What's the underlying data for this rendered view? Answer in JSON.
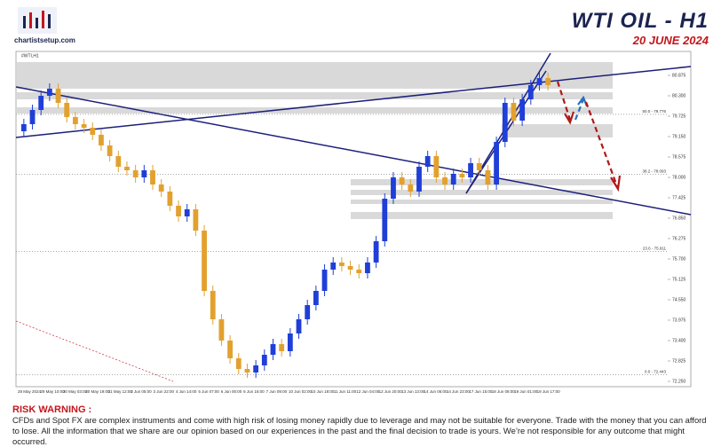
{
  "header": {
    "logo": "chartistsetup.com",
    "title": "WTI OIL  -  H1",
    "date": "20 JUNE 2024"
  },
  "chart_data": {
    "type": "candlestick",
    "symbol": "#WTI,H1",
    "up_color": "#1f3fd8",
    "down_color": "#e2a12e",
    "open": [
      79.3,
      79.5,
      79.9,
      80.3,
      80.5,
      80.1,
      79.7,
      79.5,
      79.4,
      79.2,
      78.9,
      78.6,
      78.3,
      78.2,
      78.0,
      78.2,
      77.8,
      77.6,
      77.2,
      76.9,
      77.1,
      76.5,
      74.8,
      74.0,
      73.4,
      72.9,
      72.6,
      72.5,
      72.7,
      73.0,
      73.3,
      73.1,
      73.6,
      74.0,
      74.4,
      74.8,
      75.4,
      75.6,
      75.5,
      75.4,
      75.3,
      75.6,
      76.2,
      77.4,
      78.0,
      77.8,
      77.6,
      78.3,
      78.6,
      78.0,
      77.8,
      78.1,
      78.0,
      78.4,
      78.2,
      77.8,
      79.0,
      80.1,
      79.6,
      80.2,
      80.6,
      80.8
    ],
    "high": [
      79.65,
      80.05,
      80.45,
      80.65,
      80.65,
      80.25,
      79.85,
      79.65,
      79.55,
      79.35,
      79.05,
      78.75,
      78.45,
      78.35,
      78.35,
      78.35,
      77.95,
      77.75,
      77.35,
      77.25,
      77.25,
      76.65,
      74.95,
      74.15,
      73.55,
      73.05,
      72.75,
      72.85,
      73.15,
      73.45,
      73.45,
      73.75,
      74.15,
      74.55,
      74.95,
      75.55,
      75.75,
      75.75,
      75.65,
      75.55,
      75.75,
      76.35,
      77.55,
      78.15,
      78.15,
      77.95,
      78.45,
      78.75,
      78.75,
      78.15,
      78.25,
      78.25,
      78.55,
      78.55,
      78.35,
      79.15,
      80.25,
      80.25,
      80.35,
      80.75,
      80.95,
      80.95
    ],
    "low": [
      79.15,
      79.35,
      79.75,
      80.15,
      79.95,
      79.55,
      79.35,
      79.25,
      79.05,
      78.75,
      78.45,
      78.15,
      78.05,
      77.85,
      77.85,
      77.65,
      77.45,
      77.05,
      76.75,
      76.75,
      76.35,
      74.65,
      73.85,
      73.25,
      72.75,
      72.45,
      72.35,
      72.35,
      72.55,
      72.85,
      72.95,
      72.95,
      73.45,
      73.85,
      74.25,
      74.65,
      75.25,
      75.35,
      75.25,
      75.15,
      75.15,
      75.45,
      76.05,
      77.25,
      77.65,
      77.45,
      77.45,
      78.15,
      77.85,
      77.65,
      77.65,
      77.85,
      77.85,
      78.05,
      77.65,
      77.65,
      78.85,
      79.45,
      79.45,
      80.05,
      80.45,
      80.45
    ],
    "close": [
      79.5,
      79.9,
      80.3,
      80.5,
      80.1,
      79.7,
      79.5,
      79.4,
      79.2,
      78.9,
      78.6,
      78.3,
      78.2,
      78.0,
      78.2,
      77.8,
      77.6,
      77.2,
      76.9,
      77.1,
      76.5,
      74.8,
      74.0,
      73.4,
      72.9,
      72.6,
      72.5,
      72.7,
      73.0,
      73.3,
      73.1,
      73.6,
      74.0,
      74.4,
      74.8,
      75.4,
      75.6,
      75.5,
      75.4,
      75.3,
      75.6,
      76.2,
      77.4,
      78.0,
      77.8,
      77.6,
      78.3,
      78.6,
      78.0,
      77.8,
      78.1,
      78.0,
      78.4,
      78.2,
      77.8,
      79.0,
      80.1,
      79.6,
      80.2,
      80.6,
      80.8,
      80.6
    ],
    "x_labels": [
      "28 May 2024",
      "29 May 10:00",
      "30 May 03:00",
      "30 May 19:00",
      "31 May 12:00",
      "3 Jun 05:00",
      "3 Jun 22:00",
      "4 Jun 14:00",
      "5 Jun 07:00",
      "6 Jun 00:00",
      "6 Jun 16:00",
      "7 Jun 09:00",
      "10 Jun 02:00",
      "10 Jun 18:00",
      "11 Jun 11:00",
      "12 Jun 04:00",
      "12 Jun 20:00",
      "13 Jun 13:00",
      "14 Jun 06:00",
      "14 Jun 23:00",
      "17 Jun 15:00",
      "18 Jun 08:00",
      "19 Jun 01:00",
      "19 Jun 17:00"
    ],
    "ylim": [
      72.1,
      81.5
    ],
    "yticks": [
      {
        "value": 72.25,
        "label": "72.250"
      },
      {
        "value": 72.825,
        "label": "72.825"
      },
      {
        "value": 73.4,
        "label": "73.400"
      },
      {
        "value": 73.975,
        "label": "73.975"
      },
      {
        "value": 74.55,
        "label": "74.550"
      },
      {
        "value": 75.125,
        "label": "75.125"
      },
      {
        "value": 75.7,
        "label": "75.700"
      },
      {
        "value": 76.275,
        "label": "76.275"
      },
      {
        "value": 76.85,
        "label": "76.850"
      },
      {
        "value": 77.425,
        "label": "77.425"
      },
      {
        "value": 78,
        "label": "78.000"
      },
      {
        "value": 78.575,
        "label": "78.575"
      },
      {
        "value": 79.15,
        "label": "79.150"
      },
      {
        "value": 79.725,
        "label": "79.725"
      },
      {
        "value": 80.3,
        "label": "80.300"
      },
      {
        "value": 80.875,
        "label": "80.875"
      }
    ],
    "fib_levels": [
      {
        "value": 79.776,
        "label": "50.0 - 79.776"
      },
      {
        "value": 78.093,
        "label": "38.2 - 78.093"
      },
      {
        "value": 75.911,
        "label": "23.6 - 75.911"
      },
      {
        "value": 72.443,
        "label": "0.0 - 72.443"
      }
    ]
  },
  "risk_warning": {
    "heading": "RISK WARNING :",
    "text": "CFDs and Spot FX are complex instruments and come with high risk of losing money rapidly due to leverage and may not be suitable for everyone. Trade with the  money that you can afford to  lose. All the information that we  share are our opinion based on our experiences in the past and the final decision to trade is yours. We’re not responsible for any outcome  that might occurred."
  }
}
